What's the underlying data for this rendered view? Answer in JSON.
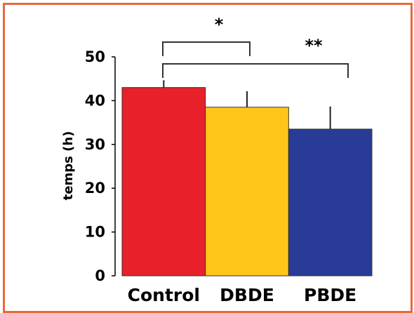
{
  "chart_data": {
    "type": "bar",
    "categories": [
      "Control",
      "DBDE",
      "PBDE"
    ],
    "values": [
      43,
      38.5,
      33.5
    ],
    "errors": [
      1.5,
      3.5,
      5
    ],
    "colors": [
      "#e8202a",
      "#ffc61a",
      "#283b96"
    ],
    "ylabel": "temps (h)",
    "ylim": [
      0,
      50
    ],
    "yticks": [
      0,
      10,
      20,
      30,
      40,
      50
    ],
    "grid": false,
    "significance": [
      {
        "from": 0,
        "to": 1,
        "label": "*"
      },
      {
        "from": 0,
        "to": 2,
        "label": "**"
      }
    ]
  }
}
